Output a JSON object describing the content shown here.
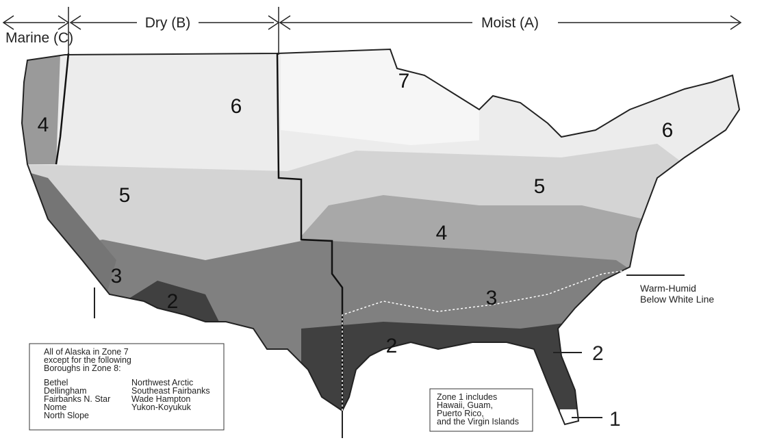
{
  "regions": {
    "marine": "Marine (C)",
    "dry": "Dry (B)",
    "moist": "Moist (A)"
  },
  "zone_labels": [
    7,
    6,
    4,
    5,
    6,
    5,
    4,
    3,
    3,
    2,
    2
  ],
  "callouts": {
    "warm_humid": [
      "Warm-Humid",
      "Below White Line"
    ],
    "zone2": 2,
    "zone1": 1
  },
  "alaska_box": {
    "lines": [
      "All of Alaska in Zone 7",
      "except for the following",
      "Boroughs in Zone 8:"
    ],
    "boroughs_left": [
      "Bethel",
      "Dellingham",
      "Fairbanks N. Star",
      "Nome",
      "North Slope"
    ],
    "boroughs_right": [
      "Northwest Arctic",
      "Southeast Fairbanks",
      "Wade Hampton",
      "Yukon-Koyukuk"
    ]
  },
  "zone1_box": {
    "lines": [
      "Zone 1 includes",
      "Hawaii, Guam,",
      "Puerto Rico,",
      "and the Virgin Islands"
    ]
  }
}
